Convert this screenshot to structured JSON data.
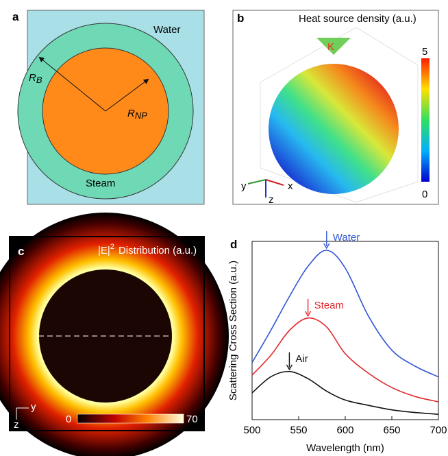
{
  "panels": {
    "a": {
      "label": "a",
      "water": "Water",
      "steam": "Steam",
      "rb": {
        "base": "R",
        "sub": "B"
      },
      "rnp": {
        "base": "R",
        "sub": "NP"
      }
    },
    "b": {
      "label": "b",
      "title": "Heat source density (a.u.)",
      "k": "K",
      "cbar_max": "5",
      "cbar_min": "0",
      "axis_y": "y",
      "axis_x": "x",
      "axis_z": "z"
    },
    "c": {
      "label": "c",
      "title": {
        "base": "|E|",
        "sup": "2",
        "rest": "Distribution (a.u.)"
      },
      "cbar_min": "0",
      "cbar_max": "70",
      "axis_y": "y",
      "axis_z": "z"
    }
  },
  "chart_data": {
    "type": "line",
    "label": "d",
    "xlabel": "Wavelength (nm)",
    "ylabel": "Scattering Cross Section (a.u.)",
    "x": [
      500,
      520,
      540,
      560,
      580,
      600,
      625,
      650,
      675,
      700
    ],
    "xlim": [
      500,
      700
    ],
    "xticks": [
      500,
      550,
      600,
      650,
      700
    ],
    "ylim": [
      0,
      10
    ],
    "series": [
      {
        "name": "Water",
        "color": "#2f55d4",
        "values": [
          3.2,
          5.0,
          6.9,
          8.6,
          9.5,
          8.5,
          5.8,
          3.9,
          3.0,
          2.4
        ]
      },
      {
        "name": "Steam",
        "color": "#e0282c",
        "values": [
          2.5,
          3.6,
          5.0,
          5.7,
          5.2,
          3.7,
          2.6,
          1.8,
          1.3,
          1.0
        ]
      },
      {
        "name": "Air",
        "color": "#111111",
        "values": [
          1.5,
          2.4,
          2.7,
          2.3,
          1.6,
          1.1,
          0.8,
          0.55,
          0.4,
          0.3
        ]
      }
    ]
  }
}
